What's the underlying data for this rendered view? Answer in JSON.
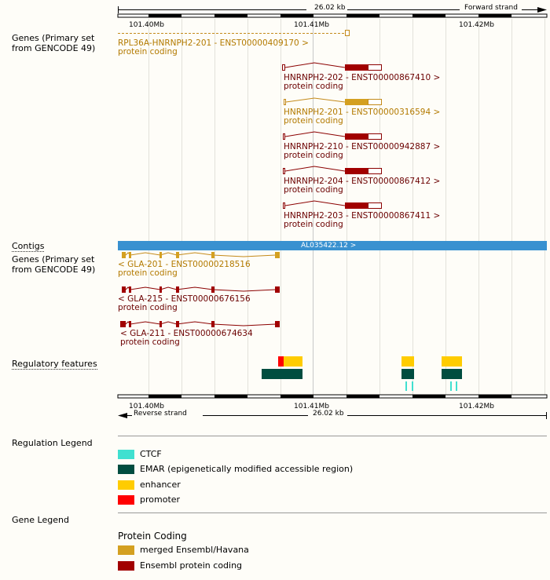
{
  "colors": {
    "merged": "#d4a021",
    "ensembl": "#a10000",
    "contig": "#3991d0",
    "ctcf": "#40e0d0",
    "emar": "#004d40",
    "enhancer": "#ffcc00",
    "promoter": "#ff0000"
  },
  "top_ruler": {
    "span_label": "26.02 kb",
    "strand_label": "Forward strand",
    "ticks": [
      "101.40Mb",
      "101.41Mb",
      "101.42Mb"
    ]
  },
  "bottom_ruler": {
    "span_label": "26.02 kb",
    "strand_label": "Reverse strand",
    "ticks": [
      "101.40Mb",
      "101.41Mb",
      "101.42Mb"
    ]
  },
  "tracks": {
    "genes_forward_label": "Genes (Primary set from GENCODE 49)",
    "contigs_label": "Contigs",
    "genes_reverse_label": "Genes (Primary set from GENCODE 49)",
    "regulatory_label": "Regulatory features"
  },
  "forward_transcripts": [
    {
      "name": "RPL36A-HNRNPH2-201 - ENST00000409170 >",
      "biotype": "protein coding"
    },
    {
      "name": "HNRNPH2-202 - ENST00000867410 >",
      "biotype": "protein coding"
    },
    {
      "name": "HNRNPH2-201 - ENST00000316594 >",
      "biotype": "protein coding"
    },
    {
      "name": "HNRNPH2-210 - ENST00000942887 >",
      "biotype": "protein coding"
    },
    {
      "name": "HNRNPH2-204 - ENST00000867412 >",
      "biotype": "protein coding"
    },
    {
      "name": "HNRNPH2-203 - ENST00000867411 >",
      "biotype": "protein coding"
    }
  ],
  "contig": {
    "name": "AL035422.12 >"
  },
  "reverse_transcripts": [
    {
      "name": "< GLA-201 - ENST00000218516",
      "biotype": "protein coding"
    },
    {
      "name": "< GLA-215 - ENST00000676156",
      "biotype": "protein coding"
    },
    {
      "name": "< GLA-211 - ENST00000674634",
      "biotype": "protein coding"
    }
  ],
  "regulation_legend": {
    "title": "Regulation Legend",
    "items": [
      {
        "label": "CTCF",
        "color": "#40e0d0"
      },
      {
        "label": "EMAR (epigenetically modified accessible region)",
        "color": "#004d40"
      },
      {
        "label": "enhancer",
        "color": "#ffcc00"
      },
      {
        "label": "promoter",
        "color": "#ff0000"
      }
    ]
  },
  "gene_legend": {
    "title": "Gene Legend",
    "subtitle": "Protein Coding",
    "items": [
      {
        "label": "merged Ensembl/Havana",
        "color": "#d4a021"
      },
      {
        "label": "Ensembl protein coding",
        "color": "#a10000"
      }
    ]
  }
}
